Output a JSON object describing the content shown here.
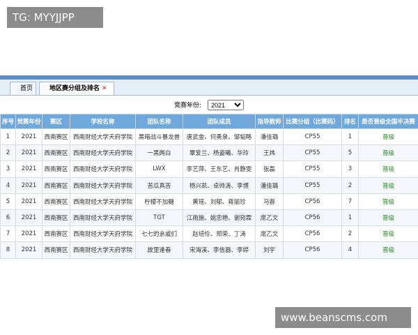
{
  "watermark_top": "TG: MYYJJPP",
  "watermark_bottom": "www.beanscms.com",
  "tabs": [
    "首页",
    "地区赛分组及排名"
  ],
  "filter": {
    "label": "竞赛年份:",
    "value": "2021"
  },
  "table": {
    "headers": [
      "序号",
      "竞赛年份",
      "赛区",
      "学校名称",
      "团队名称",
      "团队成员",
      "指导教师",
      "比赛分组（比赛码）",
      "排名",
      "是否晋级全国半决赛"
    ],
    "rows": [
      [
        1,
        2021,
        "西南赛区",
        "西南财经大学天府学院",
        "黑暗战斗暴龙兽",
        "唐武金、何勇泉、邹韬略",
        "潘佳璐",
        "CP55",
        1,
        "晋级"
      ],
      [
        2,
        2021,
        "西南赛区",
        "西南财经大学天府学院",
        "一黑两白",
        "覃爱兰、杨姿曦、华玲",
        "王炜",
        "CP55",
        5,
        "晋级"
      ],
      [
        3,
        2021,
        "西南赛区",
        "西南财经大学天府学院",
        "LWX",
        "李艺萍、王东艺、肖静雯",
        "张磊",
        "CP55",
        3,
        "晋级"
      ],
      [
        4,
        2021,
        "西南赛区",
        "西南财经大学天府学院",
        "苦瓜真苦",
        "杨兴凯、卓帅涛、李博",
        "潘佳璐",
        "CP55",
        2,
        "晋级"
      ],
      [
        5,
        2021,
        "西南赛区",
        "西南财经大学天府学院",
        "柠檬不加糖",
        "黄瑶、刘郁、蒋丽珍",
        "马蓉",
        "CP56",
        7,
        "晋级"
      ],
      [
        6,
        2021,
        "西南赛区",
        "西南财经大学天府学院",
        "TGT",
        "江雨施、姚忠艳、谢宛霖",
        "席乙文",
        "CP56",
        1,
        "晋级"
      ],
      [
        7,
        2021,
        "西南赛区",
        "西南财经大学天府学院",
        "七七的亲戚们",
        "赵培伶、郑荣、丁涛",
        "席乙文",
        "CP56",
        2,
        "晋级"
      ],
      [
        8,
        2021,
        "西南赛区",
        "西南财经大学天府学院",
        "故里逢春",
        "宋海溪、李佶器、李婷",
        "刘宇",
        "CP56",
        4,
        "晋级"
      ]
    ]
  }
}
